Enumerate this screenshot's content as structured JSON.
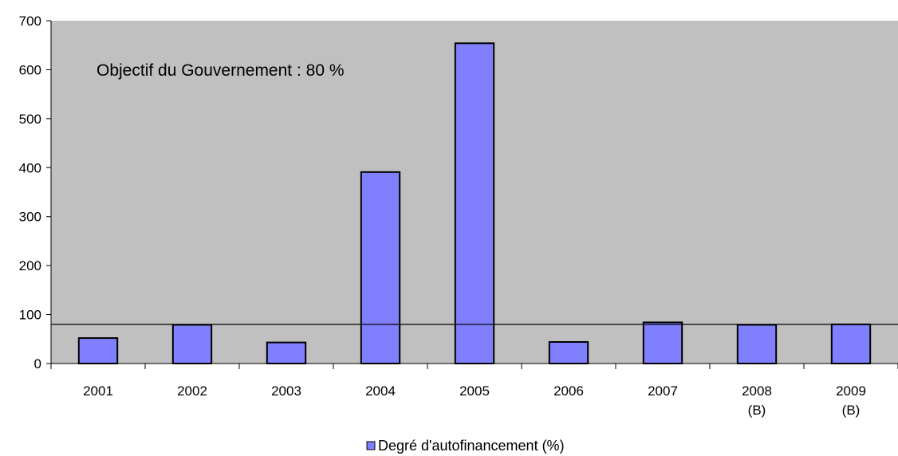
{
  "chart_data": {
    "type": "bar",
    "categories": [
      [
        "2001"
      ],
      [
        "2002"
      ],
      [
        "2003"
      ],
      [
        "2004"
      ],
      [
        "2005"
      ],
      [
        "2006"
      ],
      [
        "2007"
      ],
      [
        "2008",
        "(B)"
      ],
      [
        "2009",
        "(B)"
      ]
    ],
    "series": [
      {
        "name": "Degré d'autofinancement (%)",
        "values": [
          52,
          79,
          43,
          391,
          654,
          44,
          84,
          79,
          80
        ],
        "color": "#8080ff"
      }
    ],
    "ylim": [
      0,
      700
    ],
    "yticks": [
      0,
      100,
      200,
      300,
      400,
      500,
      600,
      700
    ],
    "reference_line": {
      "value": 80
    },
    "annotation": "Objectif du Gouvernement :  80 %",
    "plot_background": "#c0c0c0",
    "grid": false,
    "legend_position": "bottom"
  }
}
